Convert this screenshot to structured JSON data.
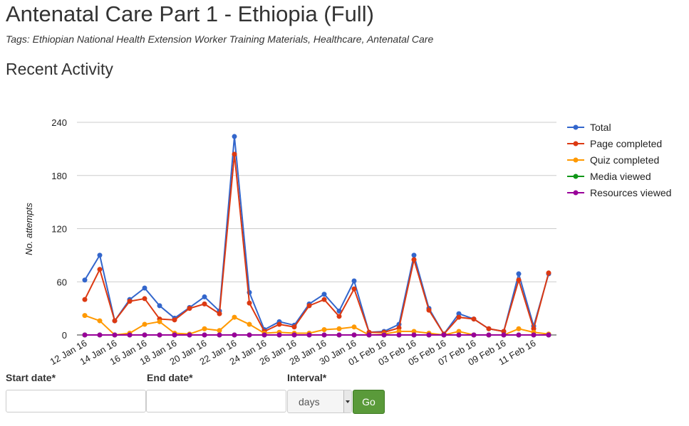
{
  "page": {
    "title": "Antenatal Care Part 1 - Ethiopia (Full)",
    "tags": "Tags: Ethiopian National Health Extension Worker Training Materials, Healthcare, Antenatal Care",
    "section_title": "Recent Activity"
  },
  "form": {
    "start_label": "Start date*",
    "start_value": "",
    "end_label": "End date*",
    "end_value": "",
    "interval_label": "Interval*",
    "interval_selected": "days",
    "go_label": "Go"
  },
  "chart_data": {
    "type": "line",
    "title": "",
    "xlabel": "",
    "ylabel": "No. attempts",
    "ylim": [
      0,
      240
    ],
    "yticks": [
      0,
      60,
      120,
      180,
      240
    ],
    "grid": true,
    "legend_position": "right",
    "categories": [
      "12 Jan 16",
      "13 Jan 16",
      "14 Jan 16",
      "15 Jan 16",
      "16 Jan 16",
      "17 Jan 16",
      "18 Jan 16",
      "19 Jan 16",
      "20 Jan 16",
      "21 Jan 16",
      "22 Jan 16",
      "23 Jan 16",
      "24 Jan 16",
      "25 Jan 16",
      "26 Jan 16",
      "27 Jan 16",
      "28 Jan 16",
      "29 Jan 16",
      "30 Jan 16",
      "31 Jan 16",
      "01 Feb 16",
      "02 Feb 16",
      "03 Feb 16",
      "04 Feb 16",
      "05 Feb 16",
      "06 Feb 16",
      "07 Feb 16",
      "08 Feb 16",
      "09 Feb 16",
      "10 Feb 16",
      "11 Feb 16",
      "12 Feb 16"
    ],
    "x_tick_labels": [
      "12 Jan 16",
      "14 Jan 16",
      "16 Jan 16",
      "18 Jan 16",
      "20 Jan 16",
      "22 Jan 16",
      "24 Jan 16",
      "26 Jan 16",
      "28 Jan 16",
      "30 Jan 16",
      "01 Feb 16",
      "03 Feb 16",
      "05 Feb 16",
      "07 Feb 16",
      "09 Feb 16",
      "11 Feb 16"
    ],
    "series": [
      {
        "name": "Total",
        "color": "#3366cc",
        "values": [
          62,
          90,
          16,
          40,
          53,
          33,
          19,
          31,
          43,
          27,
          224,
          48,
          6,
          15,
          11,
          35,
          46,
          27,
          61,
          3,
          4,
          12,
          90,
          30,
          1,
          24,
          18,
          7,
          4,
          69,
          10,
          69
        ]
      },
      {
        "name": "Page completed",
        "color": "#dc3912",
        "values": [
          40,
          74,
          16,
          38,
          41,
          18,
          17,
          30,
          35,
          24,
          204,
          36,
          4,
          12,
          9,
          33,
          40,
          21,
          52,
          3,
          3,
          8,
          85,
          28,
          1,
          20,
          18,
          7,
          4,
          62,
          7,
          70
        ]
      },
      {
        "name": "Quiz completed",
        "color": "#ff9900",
        "values": [
          22,
          16,
          0,
          2,
          12,
          15,
          2,
          1,
          7,
          5,
          20,
          12,
          2,
          3,
          2,
          2,
          6,
          7,
          9,
          0,
          1,
          4,
          4,
          2,
          0,
          4,
          0,
          0,
          0,
          7,
          3,
          1
        ]
      },
      {
        "name": "Media viewed",
        "color": "#109618",
        "values": [
          0,
          0,
          0,
          0,
          0,
          0,
          0,
          0,
          0,
          0,
          0,
          0,
          0,
          0,
          0,
          0,
          0,
          0,
          0,
          0,
          0,
          0,
          0,
          0,
          0,
          0,
          0,
          0,
          0,
          0,
          0,
          0
        ]
      },
      {
        "name": "Resources viewed",
        "color": "#990099",
        "values": [
          0,
          0,
          0,
          0,
          0,
          0,
          0,
          0,
          0,
          0,
          0,
          0,
          0,
          0,
          0,
          0,
          0,
          0,
          0,
          0,
          0,
          0,
          0,
          0,
          0,
          0,
          0,
          0,
          0,
          0,
          0,
          0
        ]
      }
    ]
  }
}
